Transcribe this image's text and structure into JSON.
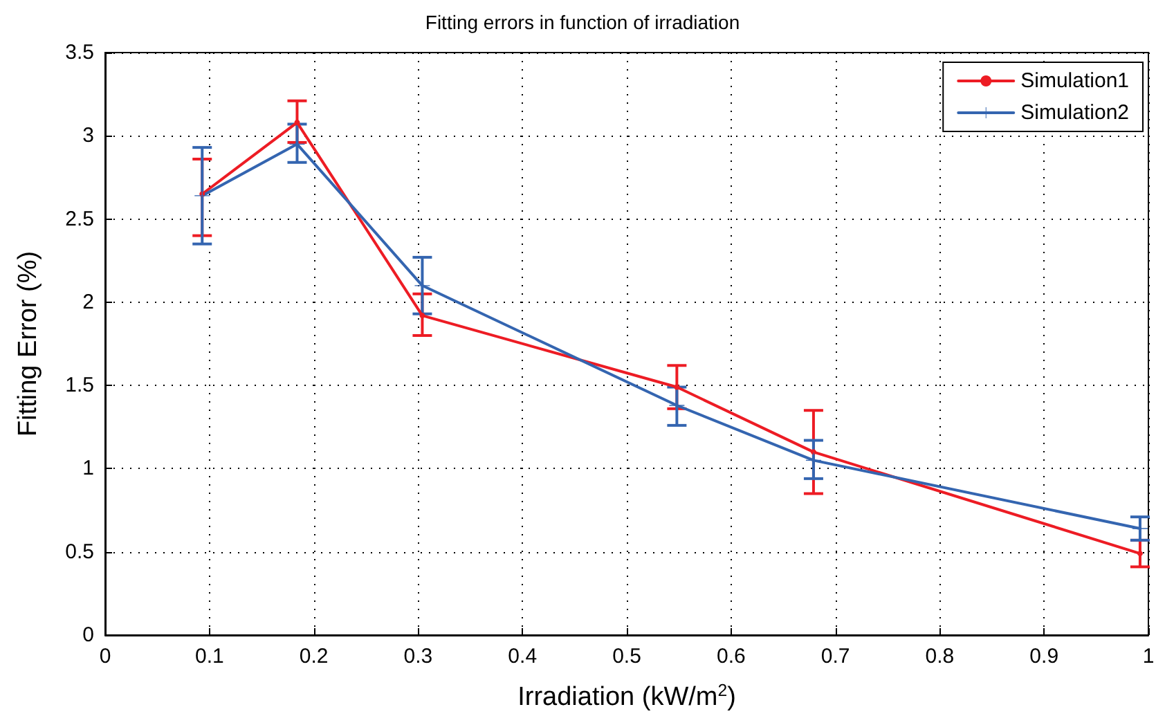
{
  "chart_data": {
    "type": "line",
    "title": "Fitting errors in function of irradiation",
    "xlabel": "Irradiation (kW/m$^{2}$)",
    "ylabel": "Fitting Error (%)",
    "x": [
      0.093,
      0.184,
      0.304,
      0.548,
      0.679,
      0.992
    ],
    "series": [
      {
        "name": "Simulation1",
        "color": "#ed1c24",
        "marker": "circle",
        "values": [
          2.65,
          3.08,
          1.92,
          1.49,
          1.1,
          0.49
        ],
        "errors": [
          [
            2.4,
            2.86
          ],
          [
            2.96,
            3.21
          ],
          [
            1.8,
            2.05
          ],
          [
            1.36,
            1.62
          ],
          [
            0.85,
            1.35
          ],
          [
            0.41,
            0.57
          ]
        ]
      },
      {
        "name": "Simulation2",
        "color": "#3465b0",
        "marker": "cross",
        "values": [
          2.64,
          2.95,
          2.1,
          1.38,
          1.05,
          0.64
        ],
        "errors": [
          [
            2.35,
            2.93
          ],
          [
            2.84,
            3.07
          ],
          [
            1.93,
            2.27
          ],
          [
            1.26,
            1.49
          ],
          [
            0.94,
            1.17
          ],
          [
            0.57,
            0.71
          ]
        ]
      }
    ],
    "xlim": [
      0,
      1
    ],
    "xticks": [
      0,
      0.1,
      0.2,
      0.3,
      0.4,
      0.5,
      0.6,
      0.7,
      0.8,
      0.9,
      1
    ],
    "ylim": [
      0,
      3.5
    ],
    "yticks": [
      0,
      0.5,
      1,
      1.5,
      2,
      2.5,
      3,
      3.5
    ],
    "grid": true,
    "legend": "top right",
    "line_style": "solid"
  }
}
